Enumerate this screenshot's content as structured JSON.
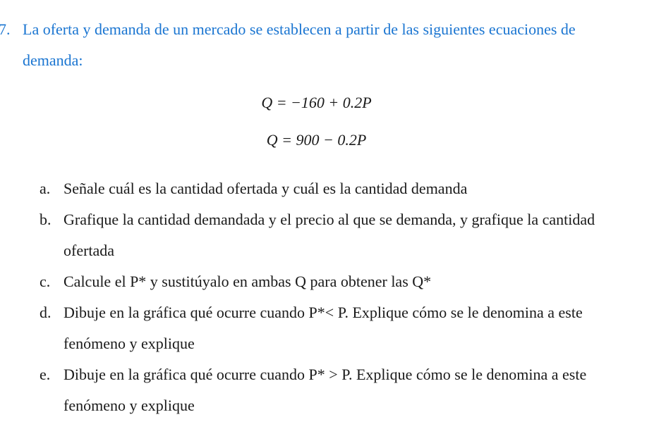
{
  "colors": {
    "question_text": "#1a75d1",
    "body_text": "#1a1a1a",
    "background": "#ffffff"
  },
  "typography": {
    "font_family": "Times New Roman",
    "base_size_pt": 16,
    "line_height": 2.0,
    "math_style": "italic"
  },
  "problem": {
    "number": "7.",
    "text": "La oferta y demanda de un mercado se establecen a partir de las siguientes ecuaciones de demanda:"
  },
  "equations": {
    "eq1": "Q = −160 + 0.2P",
    "eq2": "Q = 900 − 0.2P"
  },
  "items": {
    "a": {
      "marker": "a.",
      "text": "Señale cuál es la cantidad ofertada y cuál es la cantidad demanda"
    },
    "b": {
      "marker": "b.",
      "text": "Grafique la cantidad demandada y el precio al que se demanda, y grafique la cantidad ofertada"
    },
    "c": {
      "marker": "c.",
      "text": "Calcule el P* y sustitúyalo en ambas Q para obtener las Q*"
    },
    "d": {
      "marker": "d.",
      "text": "Dibuje en la gráfica qué ocurre cuando P*< P. Explique cómo se le denomina a este fenómeno y explique"
    },
    "e": {
      "marker": "e.",
      "text": " Dibuje en la gráfica qué ocurre cuando P* > P. Explique cómo se le denomina a este fenómeno y explique"
    }
  }
}
